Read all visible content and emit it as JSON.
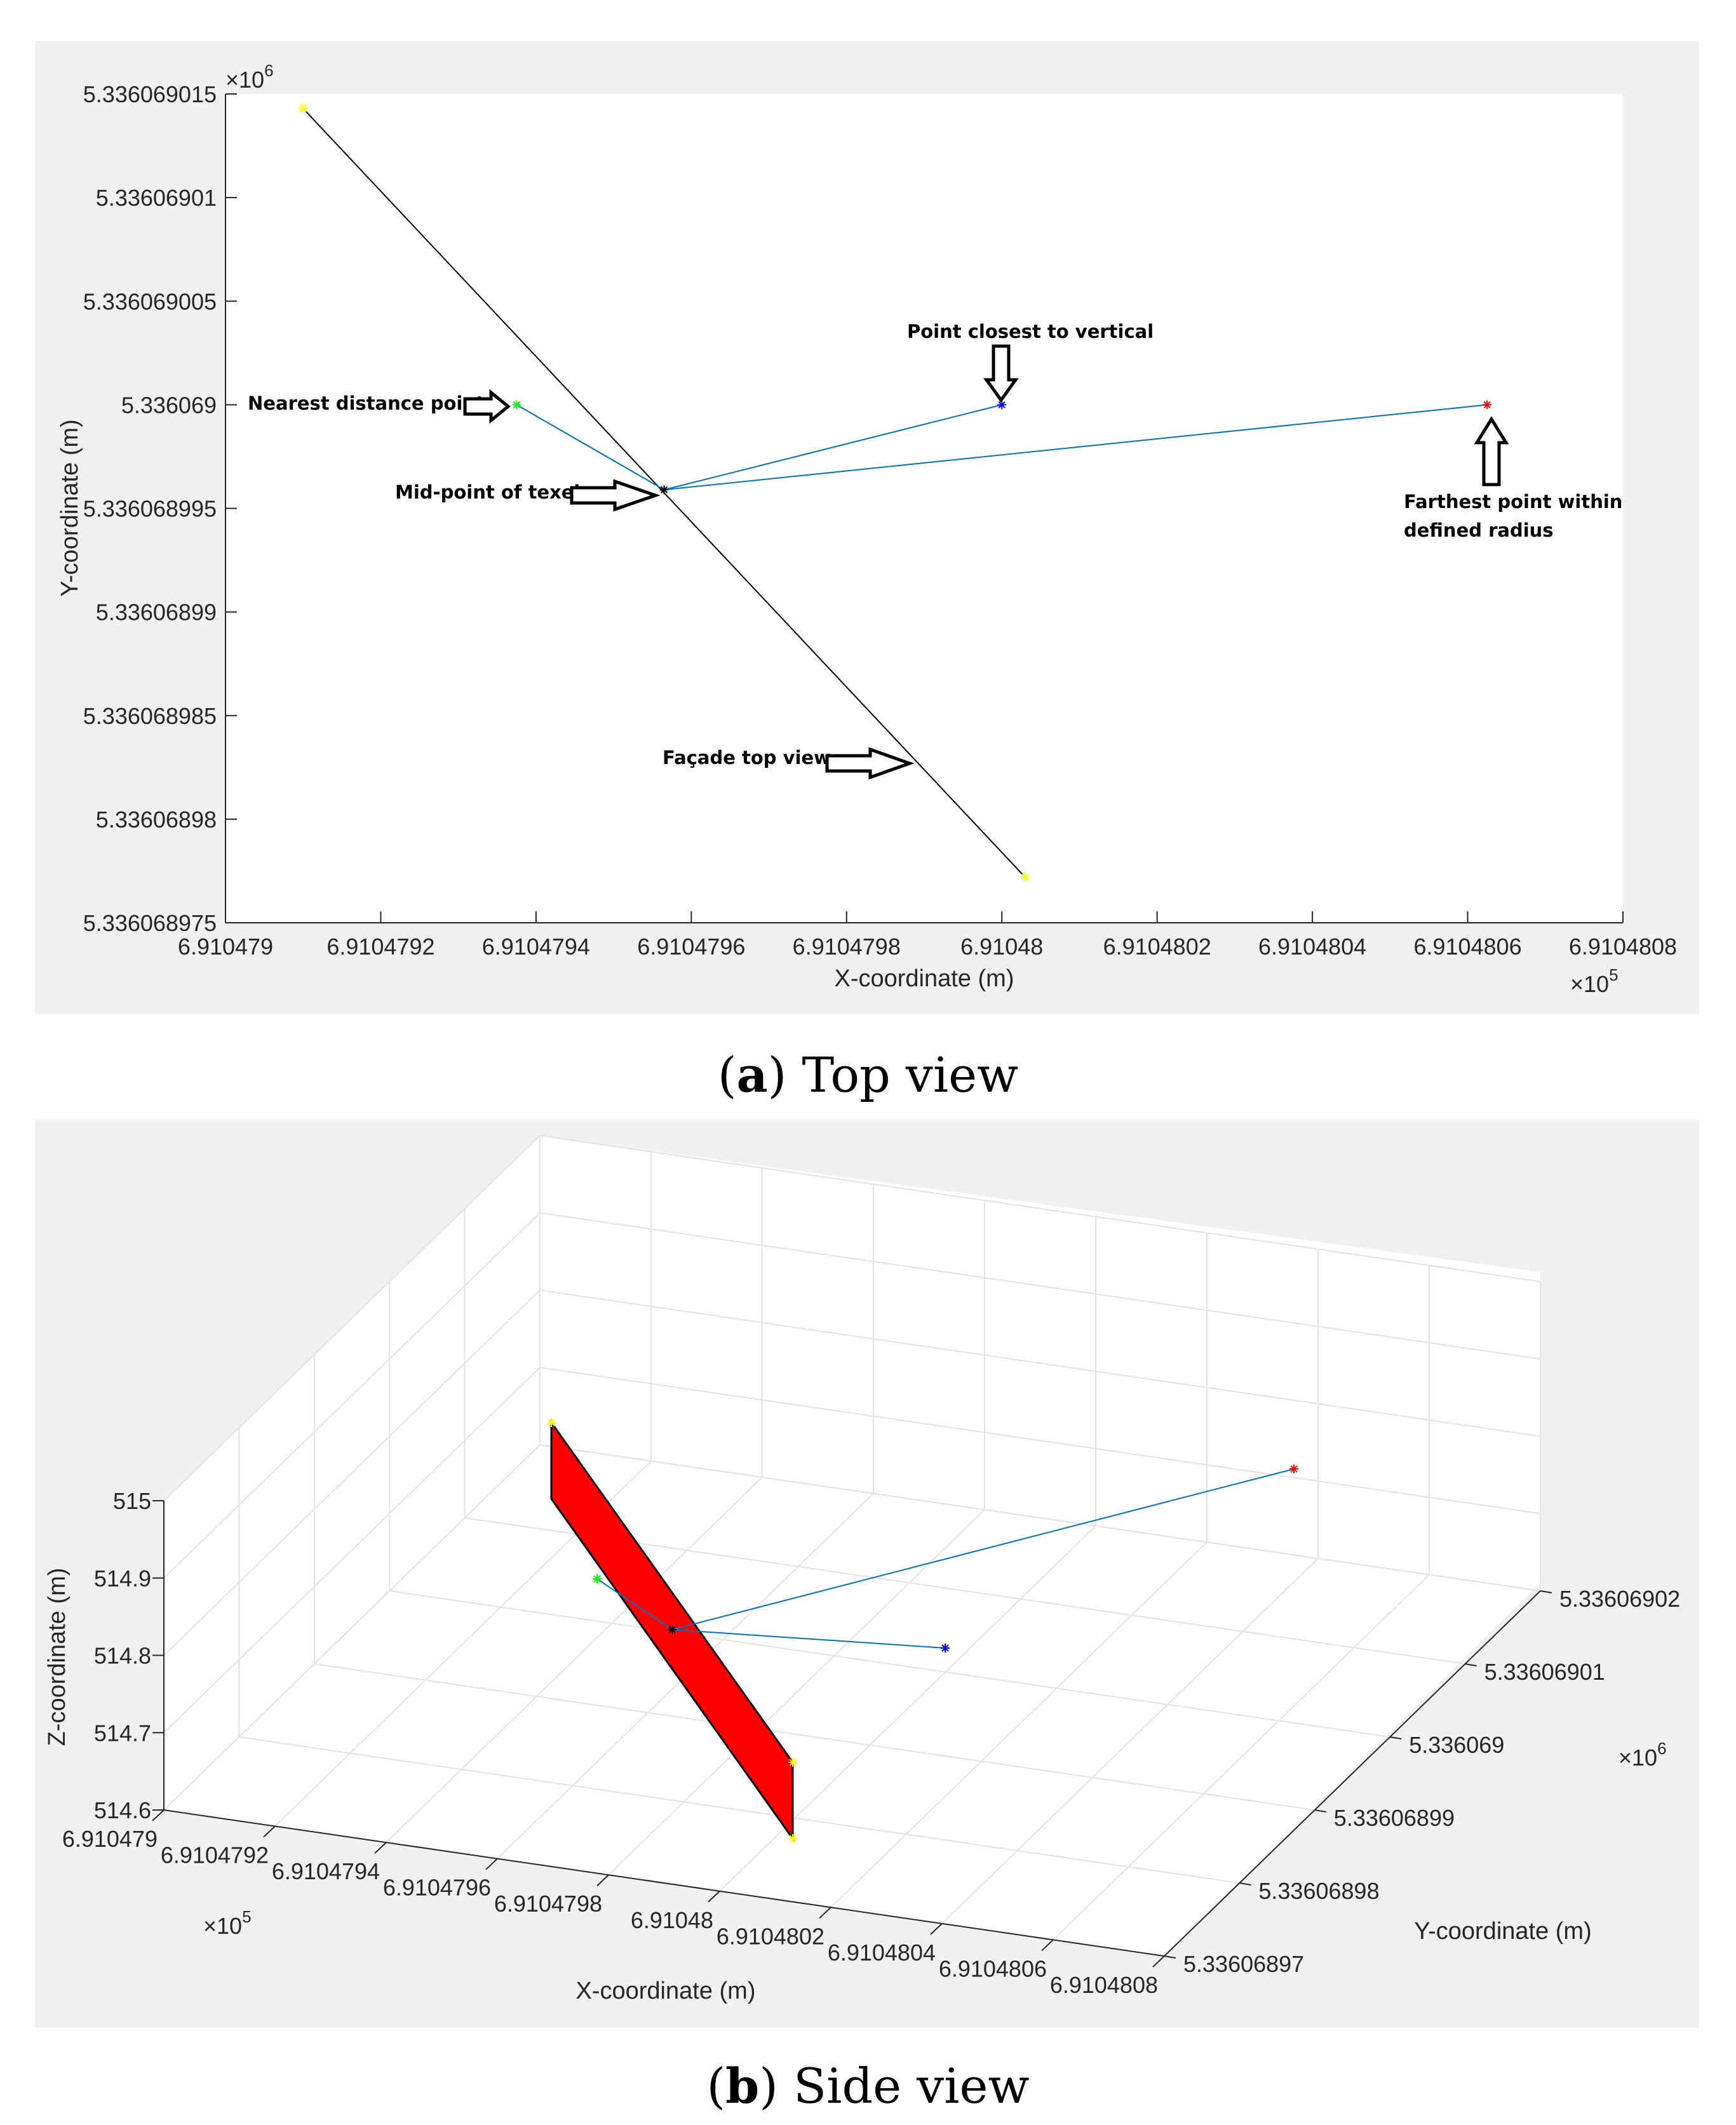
{
  "chart_data": [
    {
      "type": "line",
      "xlabel": "X-coordinate (m)",
      "ylabel": "Y-coordinate (m)",
      "xlim": [
        691047.9,
        691048.08
      ],
      "ylim": [
        5336068.975,
        5336069.015
      ],
      "x_ticks": [
        "6.910479",
        "6.9104792",
        "6.9104794",
        "6.9104796",
        "6.9104798",
        "6.91048",
        "6.9104802",
        "6.9104804",
        "6.9104806",
        "6.9104808"
      ],
      "y_ticks": [
        "5.336068975",
        "5.33606898",
        "5.336068985",
        "5.33606899",
        "5.336068995",
        "5.336069",
        "5.336069005",
        "5.33606901",
        "5.336069015"
      ],
      "x_exponent": "×10",
      "x_exponent_power": "5",
      "y_exponent": "×10",
      "y_exponent_power": "6",
      "facade": {
        "x": [
          691047.91,
          691048.003
        ],
        "y": [
          5336069.0143,
          5336068.9772
        ],
        "color": "#000000"
      },
      "midpoint": {
        "x": 691047.9565,
        "y": 5336068.9959,
        "color": "#000000"
      },
      "points": [
        {
          "name": "nearest",
          "x": 691047.9375,
          "y": 5336069.0,
          "color": "#00ff00"
        },
        {
          "name": "vertical",
          "x": 691048.0,
          "y": 5336069.0,
          "color": "#0000ff"
        },
        {
          "name": "farthest",
          "x": 691048.0625,
          "y": 5336069.0,
          "color": "#ff0000"
        }
      ],
      "line_color": "#0072bd",
      "annotations": {
        "nearest": "Nearest distance point",
        "vertical": "Point closest to vertical",
        "farthest_line1": "Farthest point within",
        "farthest_line2": "defined radius",
        "midpoint": "Mid-point of texel",
        "facade": "Façade top view"
      }
    },
    {
      "type": "scatter",
      "xlabel": "X-coordinate (m)",
      "ylabel": "Y-coordinate (m)",
      "zlabel": "Z-coordinate (m)",
      "x_ticks": [
        "6.910479",
        "6.9104792",
        "6.9104794",
        "6.9104796",
        "6.9104798",
        "6.91048",
        "6.9104802",
        "6.9104804",
        "6.9104806",
        "6.9104808"
      ],
      "y_ticks": [
        "5.33606897",
        "5.33606898",
        "5.33606899",
        "5.336069",
        "5.33606901",
        "5.33606902"
      ],
      "z_ticks": [
        "514.6",
        "514.7",
        "514.8",
        "514.9",
        "515"
      ],
      "x_exponent": "×10",
      "x_exponent_power": "5",
      "y_exponent": "×10",
      "y_exponent_power": "6",
      "facade_color": "#ff0000",
      "line_color": "#0072bd",
      "points": [
        {
          "name": "nearest",
          "color": "#00ff00"
        },
        {
          "name": "vertical",
          "color": "#0000ff"
        },
        {
          "name": "farthest",
          "color": "#ff0000"
        },
        {
          "name": "midpoint",
          "color": "#000000"
        }
      ]
    }
  ],
  "captions": {
    "a_letter": "a",
    "a_text": "Top view",
    "b_letter": "b",
    "b_text": "Side view"
  }
}
